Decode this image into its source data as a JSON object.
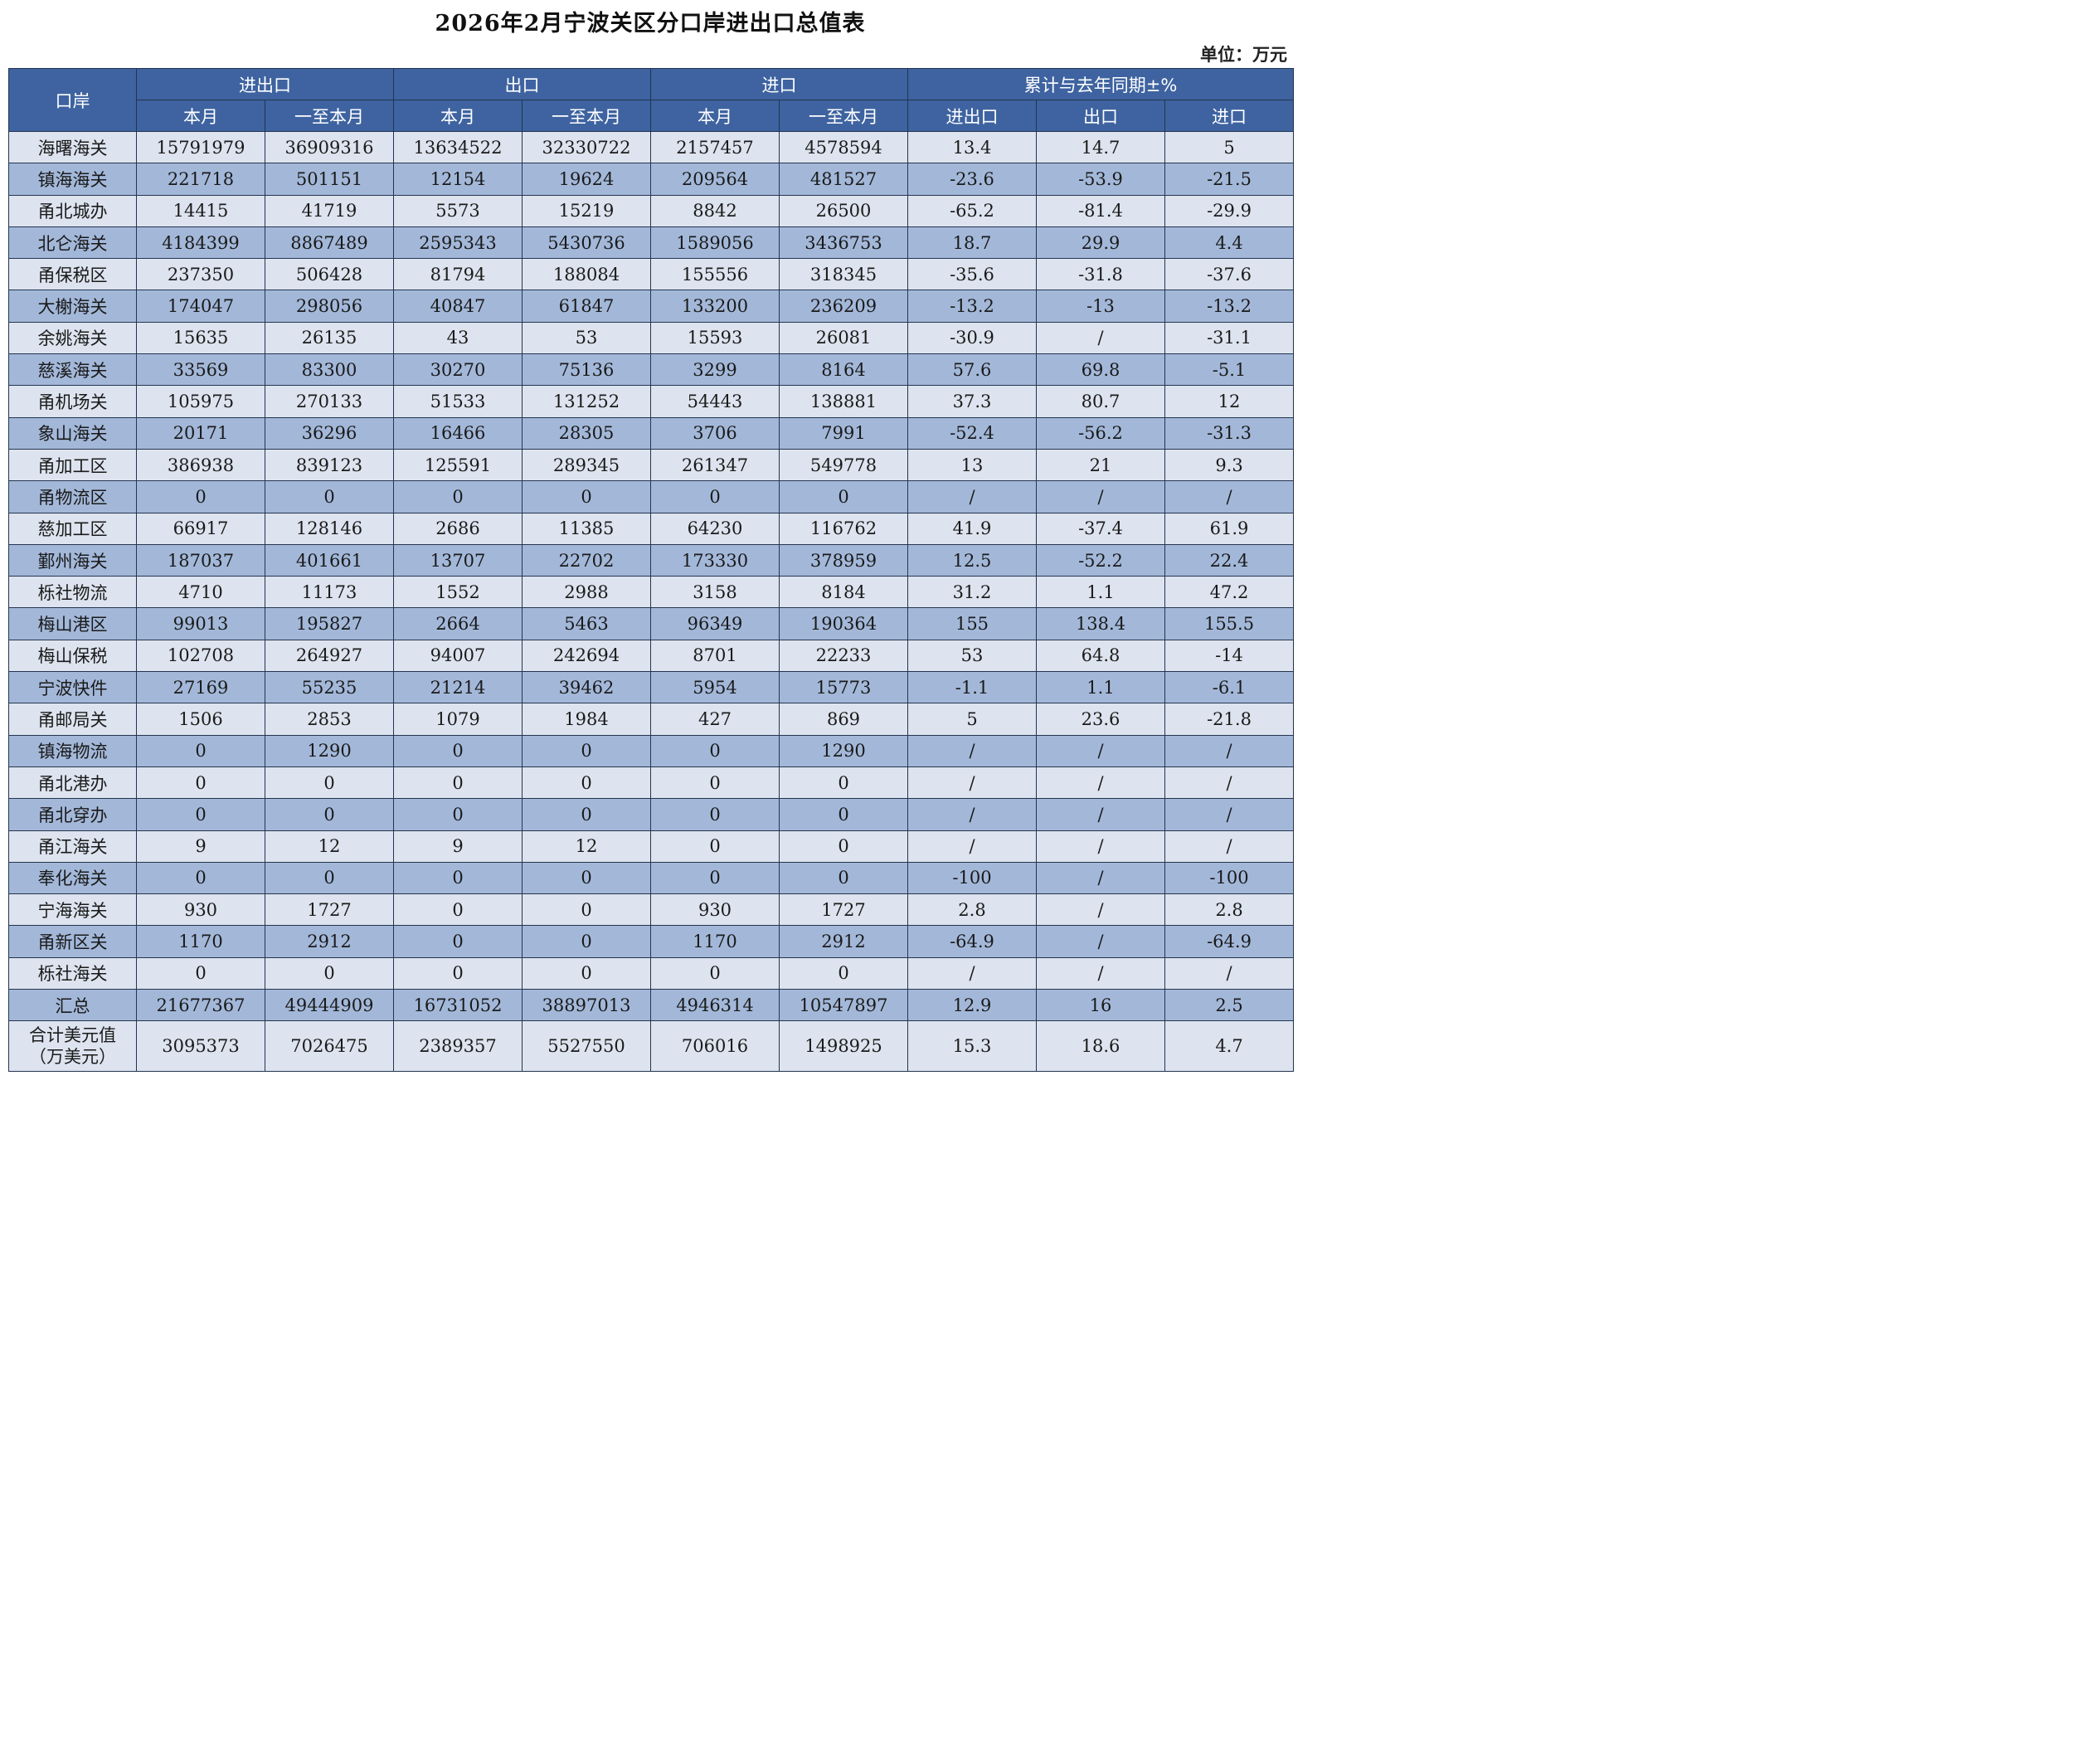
{
  "title": "2026年2月宁波关区分口岸进出口总值表",
  "unit": "单位：万元",
  "headers": {
    "port": "口岸",
    "groups": [
      "进出口",
      "出口",
      "进口",
      "累计与去年同期±%"
    ],
    "sub": [
      "本月",
      "一至本月",
      "本月",
      "一至本月",
      "本月",
      "一至本月",
      "进出口",
      "出口",
      "进口"
    ]
  },
  "rows": [
    [
      "海曙海关",
      "15791979",
      "36909316",
      "13634522",
      "32330722",
      "2157457",
      "4578594",
      "13.4",
      "14.7",
      "5"
    ],
    [
      "镇海海关",
      "221718",
      "501151",
      "12154",
      "19624",
      "209564",
      "481527",
      "-23.6",
      "-53.9",
      "-21.5"
    ],
    [
      "甬北城办",
      "14415",
      "41719",
      "5573",
      "15219",
      "8842",
      "26500",
      "-65.2",
      "-81.4",
      "-29.9"
    ],
    [
      "北仑海关",
      "4184399",
      "8867489",
      "2595343",
      "5430736",
      "1589056",
      "3436753",
      "18.7",
      "29.9",
      "4.4"
    ],
    [
      "甬保税区",
      "237350",
      "506428",
      "81794",
      "188084",
      "155556",
      "318345",
      "-35.6",
      "-31.8",
      "-37.6"
    ],
    [
      "大榭海关",
      "174047",
      "298056",
      "40847",
      "61847",
      "133200",
      "236209",
      "-13.2",
      "-13",
      "-13.2"
    ],
    [
      "余姚海关",
      "15635",
      "26135",
      "43",
      "53",
      "15593",
      "26081",
      "-30.9",
      "/",
      "-31.1"
    ],
    [
      "慈溪海关",
      "33569",
      "83300",
      "30270",
      "75136",
      "3299",
      "8164",
      "57.6",
      "69.8",
      "-5.1"
    ],
    [
      "甬机场关",
      "105975",
      "270133",
      "51533",
      "131252",
      "54443",
      "138881",
      "37.3",
      "80.7",
      "12"
    ],
    [
      "象山海关",
      "20171",
      "36296",
      "16466",
      "28305",
      "3706",
      "7991",
      "-52.4",
      "-56.2",
      "-31.3"
    ],
    [
      "甬加工区",
      "386938",
      "839123",
      "125591",
      "289345",
      "261347",
      "549778",
      "13",
      "21",
      "9.3"
    ],
    [
      "甬物流区",
      "0",
      "0",
      "0",
      "0",
      "0",
      "0",
      "/",
      "/",
      "/"
    ],
    [
      "慈加工区",
      "66917",
      "128146",
      "2686",
      "11385",
      "64230",
      "116762",
      "41.9",
      "-37.4",
      "61.9"
    ],
    [
      "鄞州海关",
      "187037",
      "401661",
      "13707",
      "22702",
      "173330",
      "378959",
      "12.5",
      "-52.2",
      "22.4"
    ],
    [
      "栎社物流",
      "4710",
      "11173",
      "1552",
      "2988",
      "3158",
      "8184",
      "31.2",
      "1.1",
      "47.2"
    ],
    [
      "梅山港区",
      "99013",
      "195827",
      "2664",
      "5463",
      "96349",
      "190364",
      "155",
      "138.4",
      "155.5"
    ],
    [
      "梅山保税",
      "102708",
      "264927",
      "94007",
      "242694",
      "8701",
      "22233",
      "53",
      "64.8",
      "-14"
    ],
    [
      "宁波快件",
      "27169",
      "55235",
      "21214",
      "39462",
      "5954",
      "15773",
      "-1.1",
      "1.1",
      "-6.1"
    ],
    [
      "甬邮局关",
      "1506",
      "2853",
      "1079",
      "1984",
      "427",
      "869",
      "5",
      "23.6",
      "-21.8"
    ],
    [
      "镇海物流",
      "0",
      "1290",
      "0",
      "0",
      "0",
      "1290",
      "/",
      "/",
      "/"
    ],
    [
      "甬北港办",
      "0",
      "0",
      "0",
      "0",
      "0",
      "0",
      "/",
      "/",
      "/"
    ],
    [
      "甬北穿办",
      "0",
      "0",
      "0",
      "0",
      "0",
      "0",
      "/",
      "/",
      "/"
    ],
    [
      "甬江海关",
      "9",
      "12",
      "9",
      "12",
      "0",
      "0",
      "/",
      "/",
      "/"
    ],
    [
      "奉化海关",
      "0",
      "0",
      "0",
      "0",
      "0",
      "0",
      "-100",
      "/",
      "-100"
    ],
    [
      "宁海海关",
      "930",
      "1727",
      "0",
      "0",
      "930",
      "1727",
      "2.8",
      "/",
      "2.8"
    ],
    [
      "甬新区关",
      "1170",
      "2912",
      "0",
      "0",
      "1170",
      "2912",
      "-64.9",
      "/",
      "-64.9"
    ],
    [
      "栎社海关",
      "0",
      "0",
      "0",
      "0",
      "0",
      "0",
      "/",
      "/",
      "/"
    ],
    [
      "汇总",
      "21677367",
      "49444909",
      "16731052",
      "38897013",
      "4946314",
      "10547897",
      "12.9",
      "16",
      "2.5"
    ]
  ],
  "usd_row": {
    "name_line1": "合计美元值",
    "name_line2": "（万美元）",
    "values": [
      "3095373",
      "7026475",
      "2389357",
      "5527550",
      "706016",
      "1498925",
      "15.3",
      "18.6",
      "4.7"
    ]
  }
}
